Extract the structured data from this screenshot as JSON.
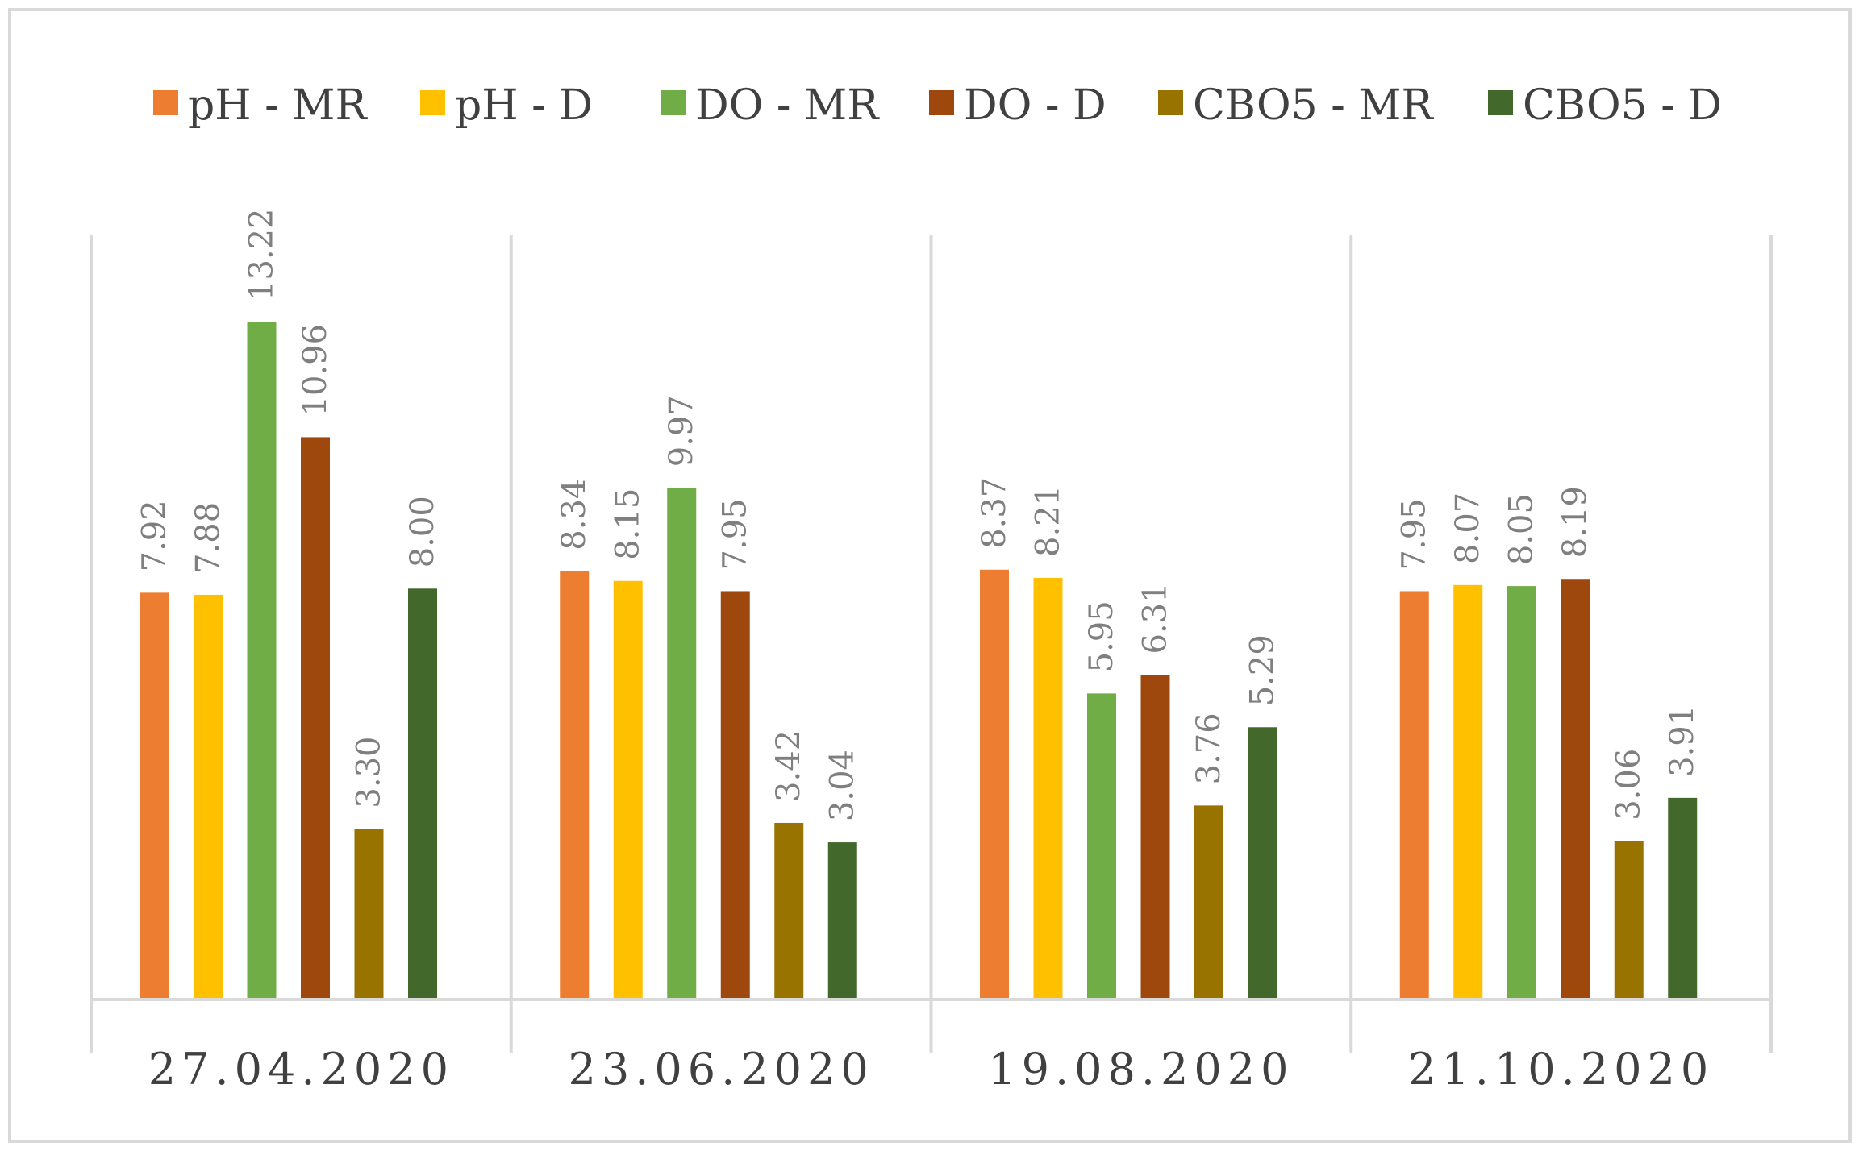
{
  "chart_data": {
    "type": "bar",
    "title": "",
    "xlabel": "",
    "ylabel": "",
    "ylim": [
      0,
      14
    ],
    "grid": false,
    "legend_position": "top",
    "categories": [
      "27.04.2020",
      "23.06.2020",
      "19.08.2020",
      "21.10.2020"
    ],
    "series": [
      {
        "name": "pH - MR",
        "color": "#ED7D31",
        "values": [
          7.92,
          8.34,
          8.37,
          7.95
        ],
        "labels": [
          "7.92",
          "8.34",
          "8.37",
          "7.95"
        ]
      },
      {
        "name": "pH  - D",
        "color": "#FFC000",
        "values": [
          7.88,
          8.15,
          8.21,
          8.07
        ],
        "labels": [
          "7.88",
          "8.15",
          "8.21",
          "8.07"
        ]
      },
      {
        "name": "DO - MR",
        "color": "#70AD47",
        "values": [
          13.22,
          9.97,
          5.95,
          8.05
        ],
        "labels": [
          "13.22",
          "9.97",
          "5.95",
          "8.05"
        ]
      },
      {
        "name": "DO - D",
        "color": "#9E480E",
        "values": [
          10.96,
          7.95,
          6.31,
          8.19
        ],
        "labels": [
          "10.96",
          "7.95",
          "6.31",
          "8.19"
        ]
      },
      {
        "name": "CBO5 - MR",
        "color": "#997300",
        "values": [
          3.3,
          3.42,
          3.76,
          3.06
        ],
        "labels": [
          "3.30",
          "3.42",
          "3.76",
          "3.06"
        ]
      },
      {
        "name": "CBO5 - D",
        "color": "#43682B",
        "values": [
          8.0,
          3.04,
          5.29,
          3.91
        ],
        "labels": [
          "8.00",
          "3.04",
          "5.29",
          "3.91"
        ]
      }
    ]
  }
}
